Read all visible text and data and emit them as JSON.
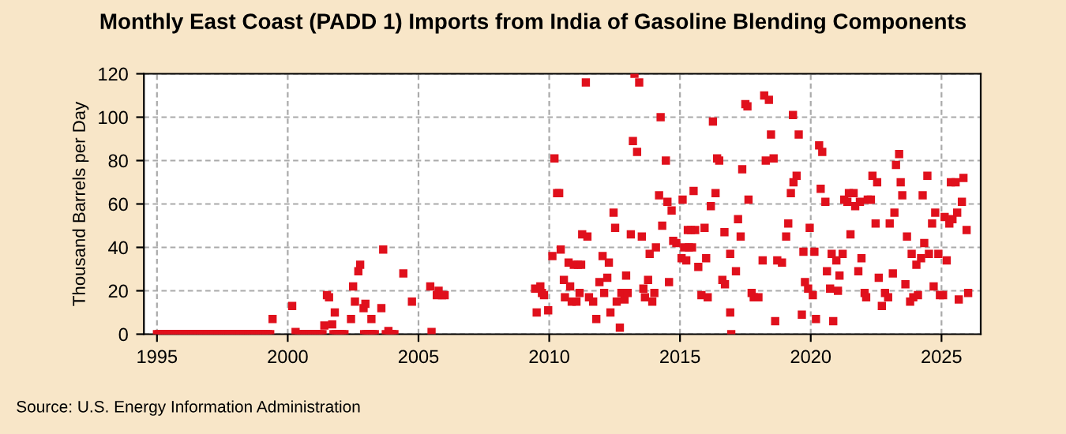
{
  "chart_data": {
    "type": "scatter",
    "title": "Monthly East Coast (PADD 1) Imports from India of Gasoline Blending Components",
    "ylabel": "Thousand Barrels per Day",
    "annotations": [
      "Source: U.S. Energy Information Administration"
    ],
    "xlim": [
      1994.5,
      2026.5
    ],
    "xticks": [
      1995,
      2000,
      2005,
      2010,
      2015,
      2020,
      2025
    ],
    "ylim": [
      0,
      120
    ],
    "yticks": [
      0,
      20,
      40,
      60,
      80,
      100,
      120
    ],
    "grid": true,
    "marker": "square",
    "series": [
      {
        "color": "#e0101c",
        "x": [
          1995.0,
          1995.08,
          1995.17,
          1995.25,
          1995.33,
          1995.42,
          1995.5,
          1995.58,
          1995.67,
          1995.75,
          1995.83,
          1995.92,
          1996.0,
          1996.08,
          1996.17,
          1996.25,
          1996.33,
          1996.42,
          1996.5,
          1996.58,
          1996.67,
          1996.75,
          1996.83,
          1996.92,
          1997.0,
          1997.08,
          1997.17,
          1997.25,
          1997.33,
          1997.42,
          1997.5,
          1997.58,
          1997.67,
          1997.75,
          1997.83,
          1997.92,
          1998.0,
          1998.08,
          1998.17,
          1998.25,
          1998.33,
          1998.42,
          1998.5,
          1998.58,
          1998.67,
          1998.75,
          1998.83,
          1998.92,
          1999.0,
          1999.08,
          1999.17,
          1999.25,
          1999.33,
          1999.42,
          2000.17,
          2000.3,
          2000.42,
          2000.5,
          2000.58,
          2000.67,
          2000.75,
          2000.83,
          2000.92,
          2001.0,
          2001.08,
          2001.17,
          2001.25,
          2001.33,
          2001.4,
          2001.5,
          2001.58,
          2001.7,
          2001.8,
          2001.75,
          2001.83,
          2001.92,
          2002.0,
          2002.08,
          2002.17,
          2002.42,
          2002.5,
          2002.57,
          2002.7,
          2002.77,
          2002.9,
          2002.97,
          2003.2,
          2002.92,
          2003.0,
          2003.08,
          2003.17,
          2003.25,
          2003.33,
          2003.58,
          2003.65,
          2003.85,
          2003.75,
          2003.92,
          2004.0,
          2004.08,
          2004.42,
          2004.75,
          2005.45,
          2005.5,
          2005.7,
          2005.77,
          2005.9,
          2006.0,
          2009.52,
          2009.46,
          2009.66,
          2009.72,
          2009.8,
          2009.96,
          2010.12,
          2010.2,
          2010.3,
          2010.38,
          2010.44,
          2010.56,
          2010.6,
          2010.74,
          2010.8,
          2010.86,
          2010.94,
          2011.04,
          2011.1,
          2011.22,
          2011.16,
          2011.26,
          2011.4,
          2011.46,
          2011.52,
          2011.68,
          2011.8,
          2011.92,
          2012.04,
          2012.1,
          2012.22,
          2012.28,
          2012.34,
          2012.46,
          2012.52,
          2012.58,
          2012.7,
          2012.76,
          2012.88,
          2012.94,
          2013.0,
          2013.12,
          2013.2,
          2013.26,
          2013.36,
          2013.44,
          2013.54,
          2013.6,
          2013.66,
          2013.78,
          2013.84,
          2013.94,
          2014.02,
          2014.08,
          2014.2,
          2014.26,
          2014.32,
          2014.46,
          2014.52,
          2014.58,
          2014.68,
          2014.74,
          2014.86,
          2015.06,
          2015.1,
          2015.16,
          2015.24,
          2015.3,
          2015.42,
          2015.58,
          2015.34,
          2015.46,
          2015.52,
          2015.7,
          2015.82,
          2015.94,
          2016.0,
          2016.06,
          2016.18,
          2016.26,
          2016.36,
          2016.42,
          2016.5,
          2016.62,
          2016.7,
          2016.72,
          2016.92,
          2016.92,
          2016.96,
          2017.14,
          2017.22,
          2017.32,
          2017.38,
          2017.5,
          2017.58,
          2017.62,
          2017.74,
          2017.82,
          2018.0,
          2018.16,
          2018.22,
          2018.4,
          2018.28,
          2018.48,
          2018.58,
          2018.64,
          2018.72,
          2018.9,
          2019.06,
          2019.14,
          2019.24,
          2019.34,
          2019.32,
          2019.46,
          2019.54,
          2019.66,
          2019.72,
          2019.78,
          2019.9,
          2019.96,
          2020.08,
          2020.14,
          2020.2,
          2020.32,
          2020.44,
          2020.38,
          2020.56,
          2020.62,
          2020.74,
          2020.8,
          2020.86,
          2020.98,
          2021.04,
          2021.1,
          2021.22,
          2021.28,
          2021.4,
          2021.46,
          2021.64,
          2021.52,
          2021.7,
          2021.82,
          2021.88,
          2021.94,
          2022.06,
          2022.12,
          2022.18,
          2022.3,
          2022.36,
          2022.54,
          2022.48,
          2022.6,
          2022.72,
          2022.84,
          2022.96,
          2023.02,
          2023.14,
          2023.2,
          2023.26,
          2023.38,
          2023.44,
          2023.5,
          2023.62,
          2023.68,
          2023.8,
          2023.86,
          2023.92,
          2024.1,
          2024.04,
          2024.22,
          2024.28,
          2024.34,
          2024.46,
          2024.52,
          2024.64,
          2024.7,
          2024.76,
          2024.88,
          2024.94,
          2025.06,
          2025.12,
          2025.2,
          2025.3,
          2025.36,
          2025.42,
          2025.54,
          2025.6,
          2025.66,
          2025.78,
          2025.84,
          2025.96,
          2026.02
        ],
        "values": [
          0,
          0,
          0,
          0,
          0,
          0,
          0,
          0,
          0,
          0,
          0,
          0,
          0,
          0,
          0,
          0,
          0,
          0,
          0,
          0,
          0,
          0,
          0,
          0,
          0,
          0,
          0,
          0,
          0,
          0,
          0,
          0,
          0,
          0,
          0,
          0,
          0,
          0,
          0,
          0,
          0,
          0,
          0,
          0,
          0,
          0,
          0,
          0,
          0,
          0,
          0,
          0,
          0,
          7,
          13,
          1,
          0,
          0,
          0,
          0,
          0,
          0,
          0,
          0,
          0,
          0,
          0,
          0,
          4,
          18,
          17,
          4.5,
          10,
          0,
          0,
          0,
          0,
          0,
          0,
          7,
          22,
          15,
          29,
          32,
          12,
          14,
          7,
          0,
          0,
          0,
          0,
          0,
          0,
          12,
          39,
          1.5,
          0,
          0,
          0,
          0,
          28,
          15,
          22,
          1,
          18,
          20,
          18,
          18,
          10,
          21,
          22,
          19,
          18,
          11,
          36,
          81,
          65,
          65,
          39,
          25,
          17,
          33,
          22,
          15,
          32,
          15,
          32,
          32,
          19,
          46,
          116,
          45,
          17,
          15,
          7,
          24,
          36,
          19,
          26,
          33,
          10,
          56,
          49,
          15,
          3,
          19,
          16,
          27,
          19,
          46,
          89,
          120,
          84,
          116,
          45,
          21,
          17,
          25,
          37,
          15,
          19,
          40,
          64,
          100,
          50,
          80,
          61,
          24,
          57,
          43,
          42,
          35,
          62,
          40,
          34,
          48,
          48,
          48,
          40,
          40,
          66,
          31,
          18,
          49,
          35,
          17,
          59,
          98,
          65,
          81,
          80,
          25,
          47,
          23,
          10,
          37,
          0,
          29,
          53,
          45,
          76,
          106,
          105,
          62,
          19,
          17,
          17,
          34,
          110,
          108,
          80,
          92,
          81,
          6,
          34,
          33,
          45,
          51,
          65,
          70,
          101,
          73,
          92,
          9,
          38,
          24,
          21,
          49,
          18,
          38,
          7,
          87,
          84,
          67,
          61,
          29,
          21,
          37,
          6,
          34,
          20,
          27,
          37,
          62,
          61,
          65,
          65,
          46,
          59,
          29,
          61,
          35,
          19,
          17,
          62,
          62,
          73,
          70,
          51,
          26,
          13,
          19,
          17,
          51,
          28,
          56,
          78,
          83,
          70,
          64,
          23,
          45,
          15,
          37,
          17,
          18,
          32,
          35,
          64,
          42,
          73,
          37,
          51,
          22,
          56,
          37,
          18,
          18,
          54,
          34,
          51,
          70,
          53,
          70,
          56,
          16,
          61,
          72,
          48,
          19
        ]
      }
    ]
  }
}
